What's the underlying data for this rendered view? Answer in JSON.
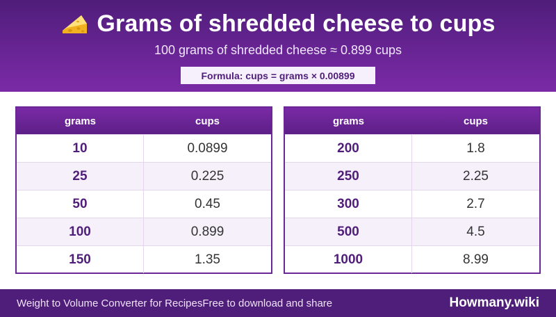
{
  "header": {
    "title": "Grams of shredded cheese to cups",
    "subtitle": "100 grams of shredded cheese ≈ 0.899 cups",
    "formula": "Formula: cups = grams × 0.00899"
  },
  "table_columns": {
    "grams": "grams",
    "cups": "cups"
  },
  "left_table": [
    {
      "grams": "10",
      "cups": "0.0899"
    },
    {
      "grams": "25",
      "cups": "0.225"
    },
    {
      "grams": "50",
      "cups": "0.45"
    },
    {
      "grams": "100",
      "cups": "0.899"
    },
    {
      "grams": "150",
      "cups": "1.35"
    }
  ],
  "right_table": [
    {
      "grams": "200",
      "cups": "1.8"
    },
    {
      "grams": "250",
      "cups": "2.25"
    },
    {
      "grams": "300",
      "cups": "2.7"
    },
    {
      "grams": "500",
      "cups": "4.5"
    },
    {
      "grams": "1000",
      "cups": "8.99"
    }
  ],
  "footer": {
    "left_text": "Weight to Volume Converter for Recipes",
    "middle_text": "Free to download and share",
    "brand": "Howmany.wiki"
  },
  "colors": {
    "accent": "#6a2596",
    "header_dark": "#4f1d7a",
    "row_alt": "#f6f0fb"
  },
  "icons": {
    "title_icon": "cheese-icon"
  }
}
